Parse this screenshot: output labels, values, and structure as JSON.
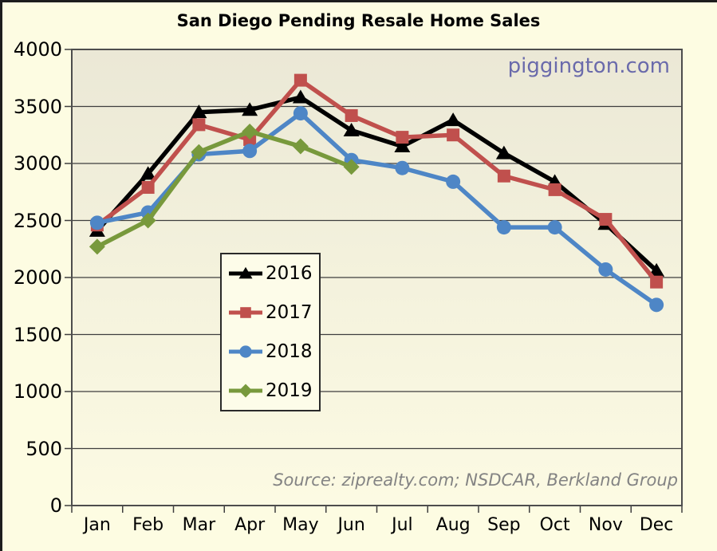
{
  "title": "San Diego Pending Resale Home Sales",
  "watermark": {
    "text": "piggington.com",
    "color": "#6a6aab"
  },
  "source_note": "Source: ziprealty.com; NSDCAR, Berkland Group",
  "colors": {
    "background": "#fdfce2",
    "plot_top": "#ebe8d6",
    "plot_bottom": "#fcfae3",
    "gridline": "#3e3e3e",
    "plot_border": "#4d4d4d"
  },
  "chart_data": {
    "type": "line",
    "categories": [
      "Jan",
      "Feb",
      "Mar",
      "Apr",
      "May",
      "Jun",
      "Jul",
      "Aug",
      "Sep",
      "Oct",
      "Nov",
      "Dec"
    ],
    "series": [
      {
        "name": "2016",
        "color": "#000000",
        "marker": "triangle",
        "values": [
          2410,
          2910,
          3450,
          3470,
          3580,
          3290,
          3150,
          3380,
          3090,
          2840,
          2470,
          2060
        ]
      },
      {
        "name": "2017",
        "color": "#c0504d",
        "marker": "square",
        "values": [
          2460,
          2790,
          3340,
          3210,
          3730,
          3420,
          3230,
          3250,
          2890,
          2770,
          2510,
          1960
        ]
      },
      {
        "name": "2018",
        "color": "#4e86c6",
        "marker": "circle",
        "values": [
          2480,
          2570,
          3080,
          3110,
          3440,
          3030,
          2960,
          2840,
          2440,
          2440,
          2070,
          1760
        ]
      },
      {
        "name": "2019",
        "color": "#78993c",
        "marker": "diamond",
        "values": [
          2270,
          2500,
          3100,
          3280,
          3150,
          2970
        ]
      }
    ],
    "ylim": [
      0,
      4000
    ],
    "ytick_step": 500,
    "grid": true,
    "legend_position": "center-left",
    "xlabel": "",
    "ylabel": ""
  }
}
